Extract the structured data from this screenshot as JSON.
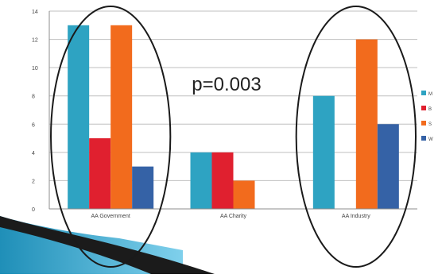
{
  "chart_data": {
    "type": "bar",
    "categories": [
      "AA Government",
      "AA Charity",
      "AA Industry"
    ],
    "series": [
      {
        "name": "M",
        "color": "#2ea3c2",
        "values": [
          13,
          4,
          8
        ]
      },
      {
        "name": "B",
        "color": "#e0202f",
        "values": [
          5,
          4,
          0
        ]
      },
      {
        "name": "S",
        "color": "#f26b1d",
        "values": [
          13,
          2,
          12
        ]
      },
      {
        "name": "W",
        "color": "#3562a6",
        "values": [
          3,
          0,
          6
        ]
      }
    ],
    "ylim": [
      0,
      14
    ],
    "yticks": [
      0,
      2,
      4,
      6,
      8,
      10,
      12,
      14
    ],
    "grid": true,
    "legend_position": "right",
    "annotation": "p=0.003",
    "highlighted_categories": [
      "AA Government",
      "AA Industry"
    ]
  }
}
